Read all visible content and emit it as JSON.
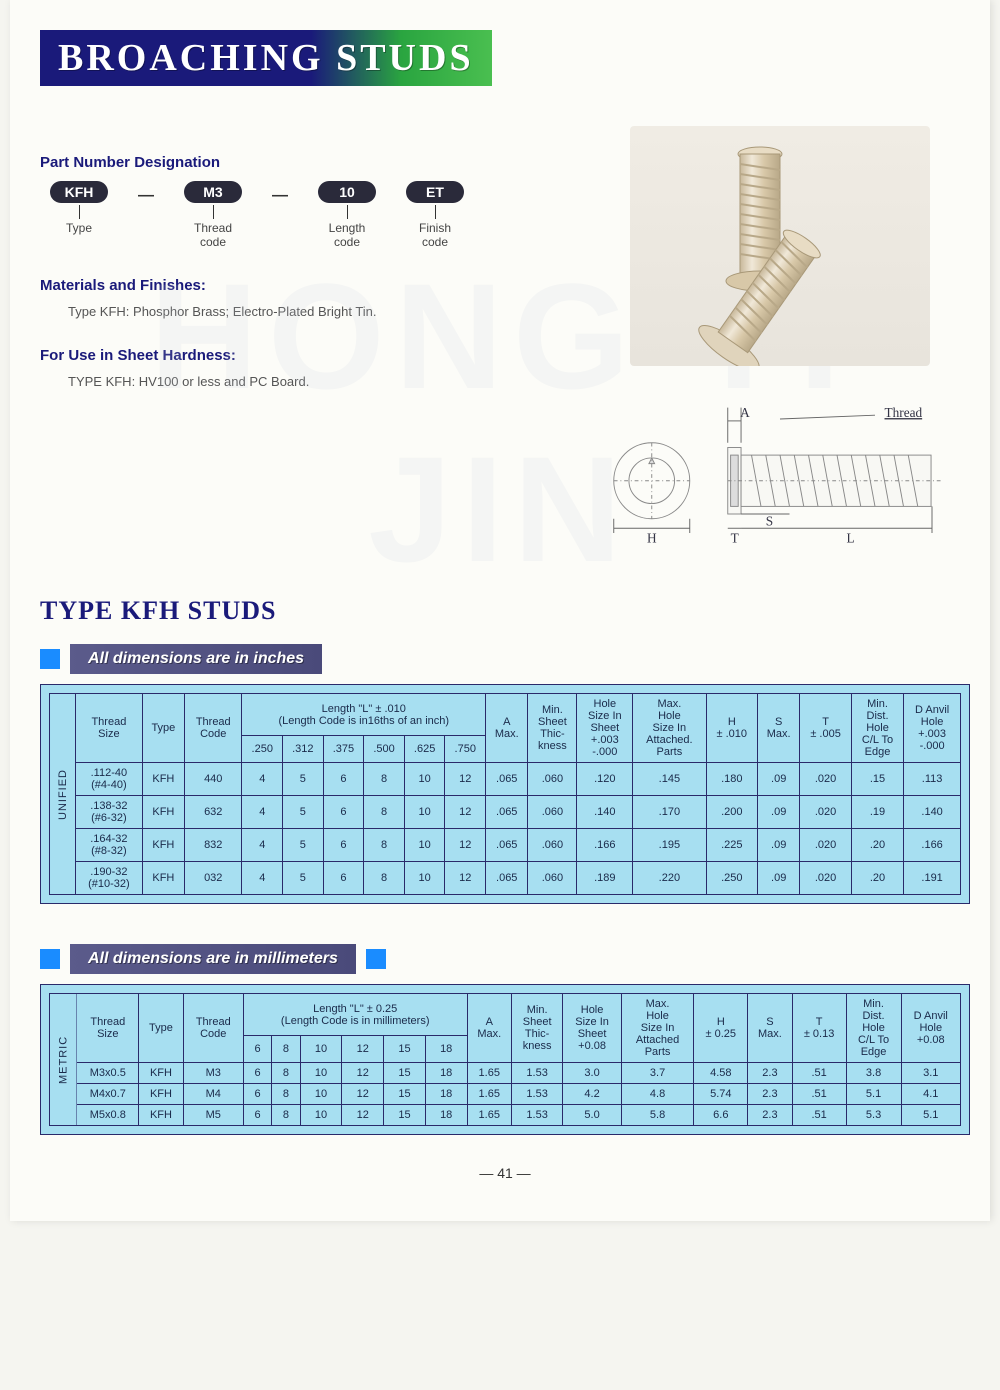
{
  "title": "BROACHING STUDS",
  "part_designation": {
    "heading": "Part Number Designation",
    "segments": [
      {
        "value": "KFH",
        "label": "Type"
      },
      {
        "value": "M3",
        "label": "Thread\ncode"
      },
      {
        "value": "10",
        "label": "Length\ncode"
      },
      {
        "value": "ET",
        "label": "Finish\ncode"
      }
    ]
  },
  "materials": {
    "heading": "Materials and Finishes:",
    "body": "Type KFH:  Phosphor Brass;   Electro-Plated Bright Tin."
  },
  "hardness": {
    "heading": "For Use in Sheet Hardness:",
    "body": "TYPE KFH:   HV100 or less and PC Board."
  },
  "type_header": "TYPE KFH STUDS",
  "diagram_labels": {
    "A": "A",
    "Thread": "Thread",
    "H": "H",
    "T": "T",
    "S": "S",
    "L": "L"
  },
  "table_inches": {
    "banner": "All dimensions are in inches",
    "side_label": "UNIFIED",
    "length_header": "Length \"L\" ± .010\n(Length Code is in16ths of an inch)",
    "length_cols": [
      ".250",
      ".312",
      ".375",
      ".500",
      ".625",
      ".750"
    ],
    "col_headers": [
      "Thread\nSize",
      "Type",
      "Thread\nCode",
      "A\nMax.",
      "Min.\nSheet\nThic-\nkness",
      "Hole\nSize In\nSheet\n+.003\n-.000",
      "Max.\nHole\nSize In\nAttached.\nParts",
      "H\n± .010",
      "S\nMax.",
      "T\n± .005",
      "Min.\nDist.\nHole\nC/L To\nEdge",
      "D Anvil\nHole\n+.003\n-.000"
    ],
    "rows": [
      {
        "thread_size": ".112-40\n(#4-40)",
        "type": "KFH",
        "code": "440",
        "lens": [
          "4",
          "5",
          "6",
          "8",
          "10",
          "12"
        ],
        "a": ".065",
        "min_sheet": ".060",
        "hole": ".120",
        "max_hole": ".145",
        "h": ".180",
        "s": ".09",
        "t": ".020",
        "cl": ".15",
        "d": ".113"
      },
      {
        "thread_size": ".138-32\n(#6-32)",
        "type": "KFH",
        "code": "632",
        "lens": [
          "4",
          "5",
          "6",
          "8",
          "10",
          "12"
        ],
        "a": ".065",
        "min_sheet": ".060",
        "hole": ".140",
        "max_hole": ".170",
        "h": ".200",
        "s": ".09",
        "t": ".020",
        "cl": ".19",
        "d": ".140"
      },
      {
        "thread_size": ".164-32\n(#8-32)",
        "type": "KFH",
        "code": "832",
        "lens": [
          "4",
          "5",
          "6",
          "8",
          "10",
          "12"
        ],
        "a": ".065",
        "min_sheet": ".060",
        "hole": ".166",
        "max_hole": ".195",
        "h": ".225",
        "s": ".09",
        "t": ".020",
        "cl": ".20",
        "d": ".166"
      },
      {
        "thread_size": ".190-32\n(#10-32)",
        "type": "KFH",
        "code": "032",
        "lens": [
          "4",
          "5",
          "6",
          "8",
          "10",
          "12"
        ],
        "a": ".065",
        "min_sheet": ".060",
        "hole": ".189",
        "max_hole": ".220",
        "h": ".250",
        "s": ".09",
        "t": ".020",
        "cl": ".20",
        "d": ".191"
      }
    ]
  },
  "table_mm": {
    "banner": "All dimensions are in millimeters",
    "side_label": "METRIC",
    "length_header": "Length \"L\" ± 0.25\n(Length Code is in millimeters)",
    "length_cols": [
      "6",
      "8",
      "10",
      "12",
      "15",
      "18"
    ],
    "col_headers": [
      "Thread\nSize",
      "Type",
      "Thread\nCode",
      "A\nMax.",
      "Min.\nSheet\nThic-\nkness",
      "Hole\nSize In\nSheet\n+0.08",
      "Max.\nHole\nSize In\nAttached\nParts",
      "H\n± 0.25",
      "S\nMax.",
      "T\n± 0.13",
      "Min.\nDist.\nHole\nC/L To\nEdge",
      "D Anvil\nHole\n+0.08"
    ],
    "rows": [
      {
        "thread_size": "M3x0.5",
        "type": "KFH",
        "code": "M3",
        "lens": [
          "6",
          "8",
          "10",
          "12",
          "15",
          "18"
        ],
        "a": "1.65",
        "min_sheet": "1.53",
        "hole": "3.0",
        "max_hole": "3.7",
        "h": "4.58",
        "s": "2.3",
        "t": ".51",
        "cl": "3.8",
        "d": "3.1"
      },
      {
        "thread_size": "M4x0.7",
        "type": "KFH",
        "code": "M4",
        "lens": [
          "6",
          "8",
          "10",
          "12",
          "15",
          "18"
        ],
        "a": "1.65",
        "min_sheet": "1.53",
        "hole": "4.2",
        "max_hole": "4.8",
        "h": "5.74",
        "s": "2.3",
        "t": ".51",
        "cl": "5.1",
        "d": "4.1"
      },
      {
        "thread_size": "M5x0.8",
        "type": "KFH",
        "code": "M5",
        "lens": [
          "6",
          "8",
          "10",
          "12",
          "15",
          "18"
        ],
        "a": "1.65",
        "min_sheet": "1.53",
        "hole": "5.0",
        "max_hole": "5.8",
        "h": "6.6",
        "s": "2.3",
        "t": ".51",
        "cl": "5.3",
        "d": "5.1"
      }
    ]
  },
  "page_number": "— 41 —",
  "colors": {
    "title_bg_start": "#1a1a7a",
    "title_bg_end": "#4abf50",
    "table_bg": "#a7dff1",
    "border": "#2a2a6a",
    "accent": "#1a8cff"
  }
}
